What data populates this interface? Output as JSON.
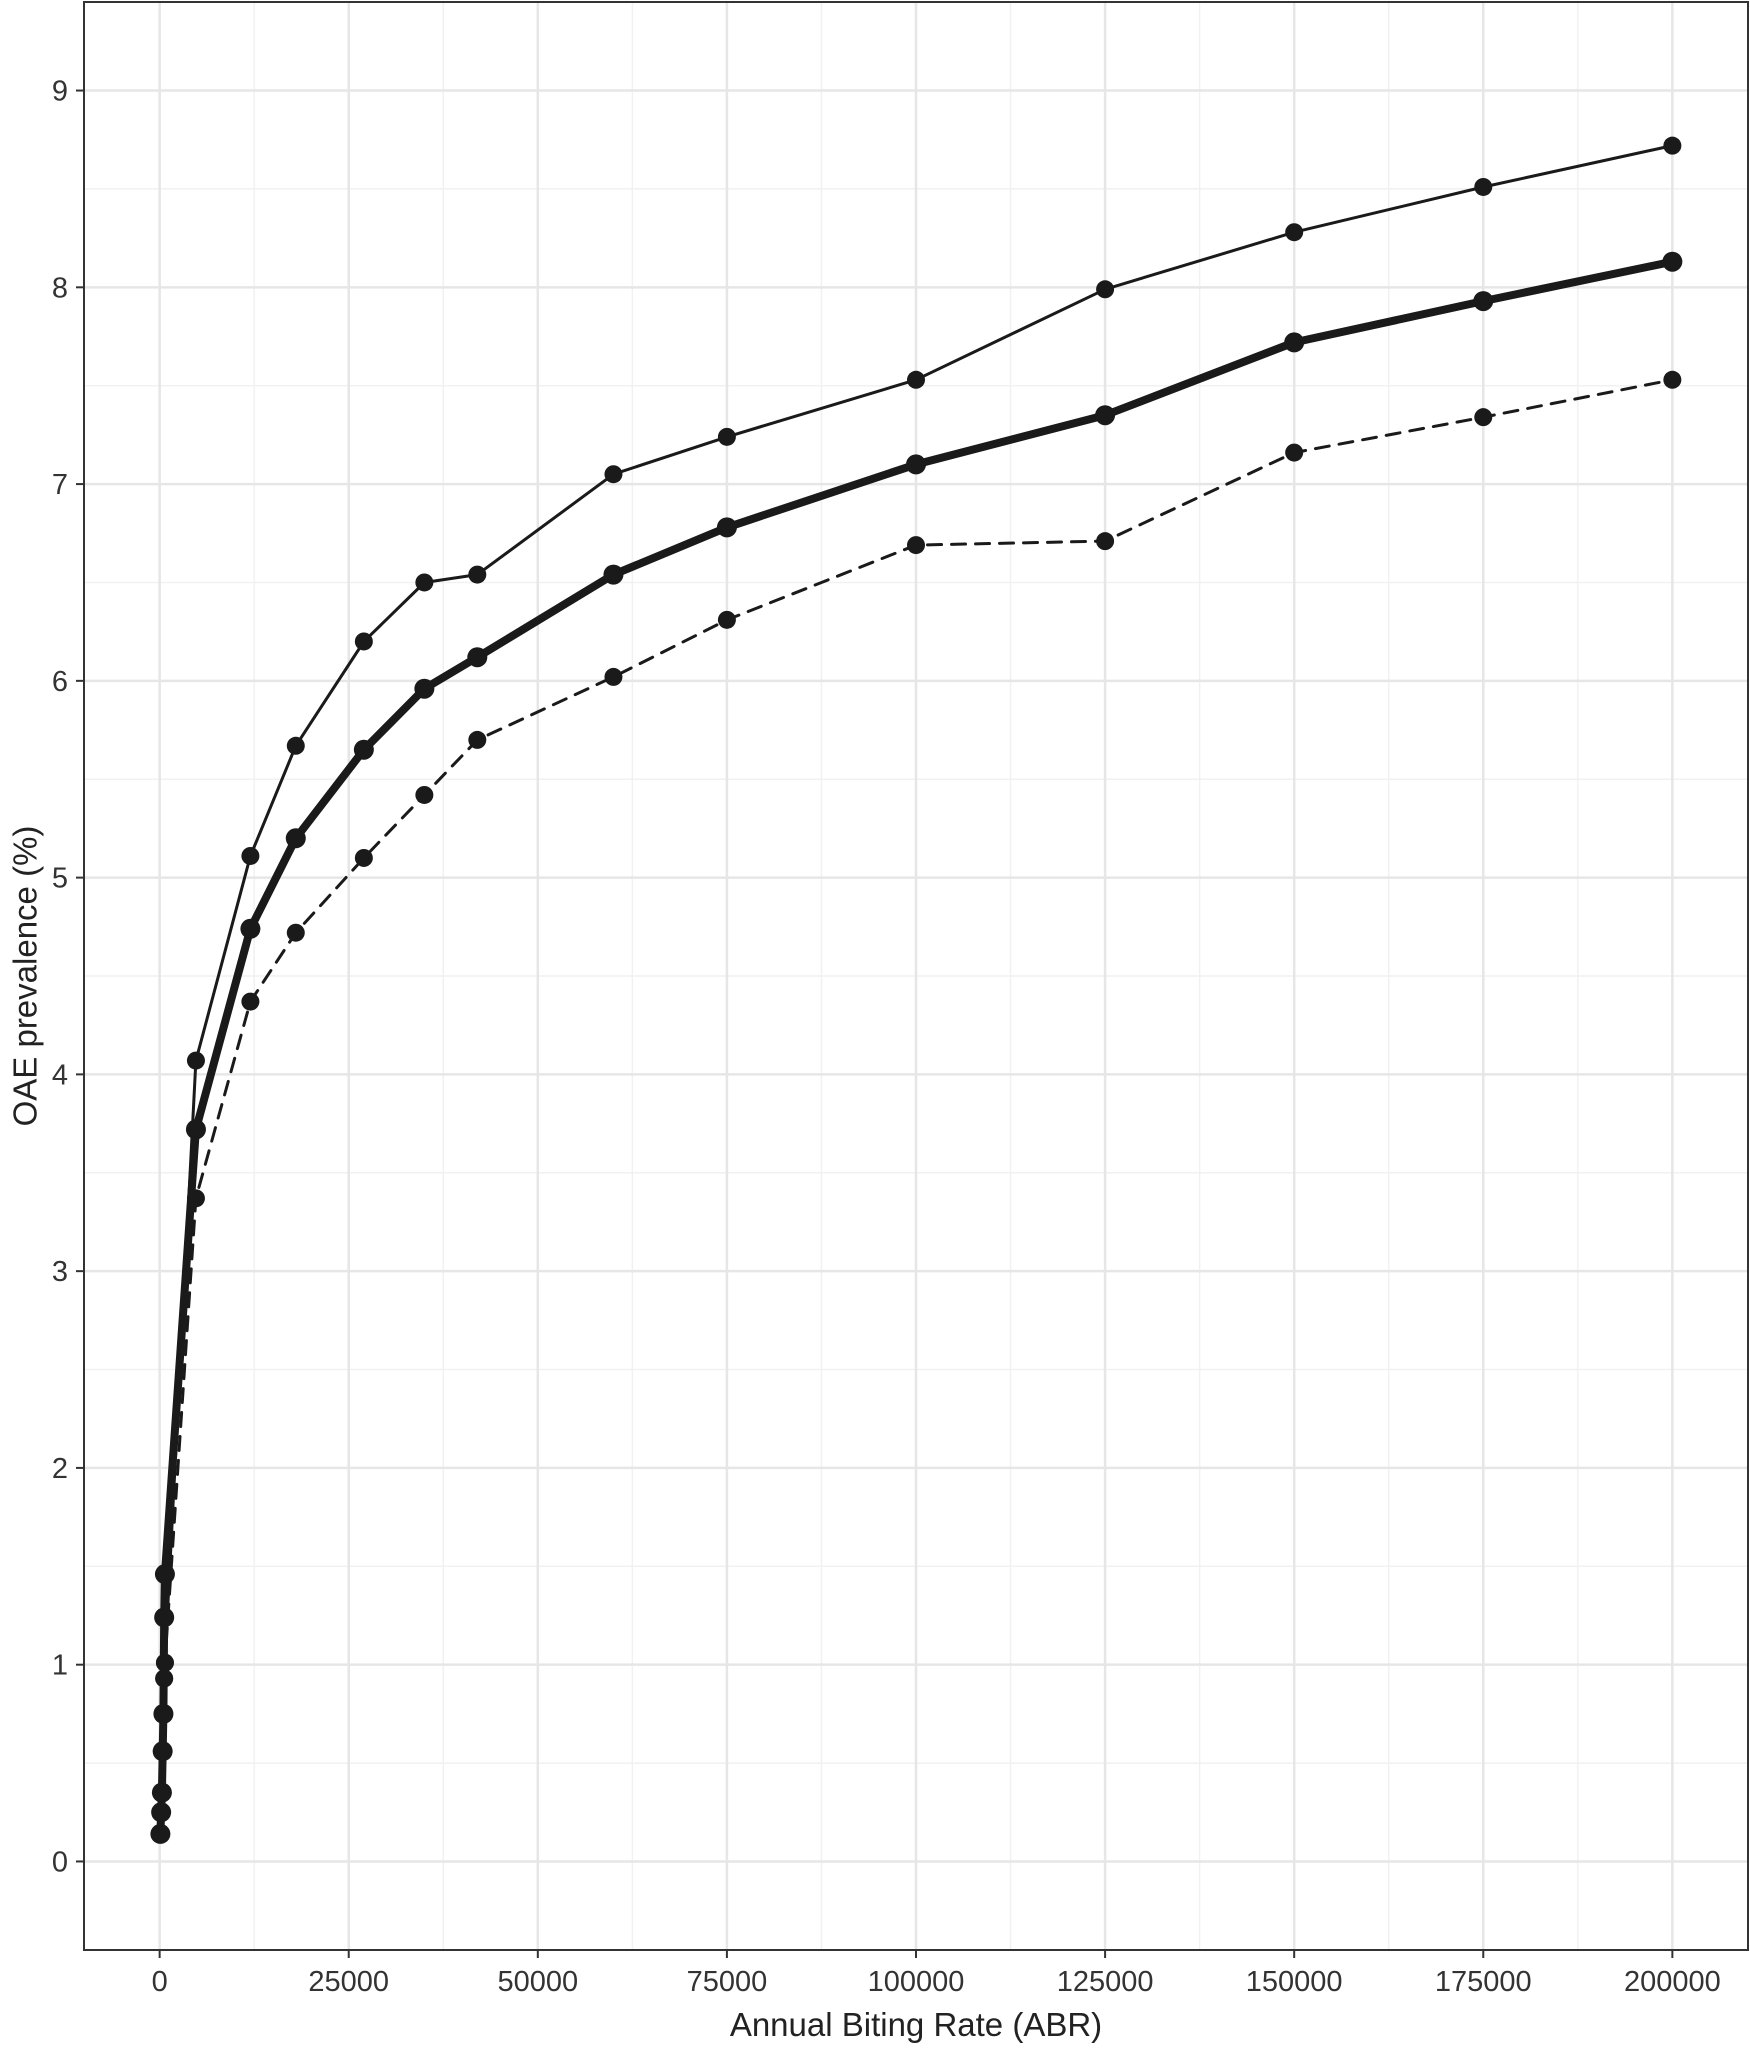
{
  "chart_data": {
    "type": "line",
    "title": "",
    "xlabel": "Annual Biting Rate (ABR)",
    "ylabel": "OAE prevalence (%)",
    "xlim": [
      -10000,
      210000
    ],
    "ylim": [
      -0.45,
      9.45
    ],
    "x_ticks": [
      0,
      25000,
      50000,
      75000,
      100000,
      125000,
      150000,
      175000,
      200000
    ],
    "x_tick_labels": [
      "0",
      "25000",
      "50000",
      "75000",
      "100000",
      "125000",
      "150000",
      "175000",
      "200000"
    ],
    "y_ticks": [
      0,
      1,
      2,
      3,
      4,
      5,
      6,
      7,
      8,
      9
    ],
    "y_tick_labels": [
      "0",
      "1",
      "2",
      "3",
      "4",
      "5",
      "6",
      "7",
      "8",
      "9"
    ],
    "grid": true,
    "legend": "none",
    "series": [
      {
        "style": "thin-solid",
        "color": "#1a1a1a",
        "x": [
          100,
          200,
          300,
          400,
          500,
          600,
          700,
          4800,
          12000,
          18000,
          27000,
          35000,
          42000,
          60000,
          75000,
          100000,
          125000,
          150000,
          175000,
          200000
        ],
        "y": [
          0.14,
          0.25,
          0.35,
          0.56,
          0.75,
          0.93,
          1.01,
          4.07,
          5.11,
          5.67,
          6.2,
          6.5,
          6.54,
          7.05,
          7.24,
          7.53,
          7.99,
          8.28,
          8.51,
          8.72
        ]
      },
      {
        "style": "thick-solid",
        "color": "#1a1a1a",
        "x": [
          100,
          200,
          300,
          400,
          500,
          600,
          700,
          4800,
          12000,
          18000,
          27000,
          35000,
          42000,
          60000,
          75000,
          100000,
          125000,
          150000,
          175000,
          200000
        ],
        "y": [
          0.14,
          0.25,
          0.35,
          0.56,
          0.75,
          1.24,
          1.46,
          3.72,
          4.74,
          5.2,
          5.65,
          5.96,
          6.12,
          6.54,
          6.78,
          7.1,
          7.35,
          7.72,
          7.93,
          8.13
        ]
      },
      {
        "style": "dashed",
        "color": "#1a1a1a",
        "x": [
          100,
          200,
          300,
          400,
          500,
          600,
          700,
          4800,
          12000,
          18000,
          27000,
          35000,
          42000,
          60000,
          75000,
          100000,
          125000,
          150000,
          175000,
          200000
        ],
        "y": [
          0.14,
          0.25,
          0.35,
          0.56,
          0.75,
          0.93,
          1.01,
          3.37,
          4.37,
          4.72,
          5.1,
          5.42,
          5.7,
          6.02,
          6.31,
          6.69,
          6.71,
          7.16,
          7.34,
          7.53
        ]
      }
    ]
  }
}
